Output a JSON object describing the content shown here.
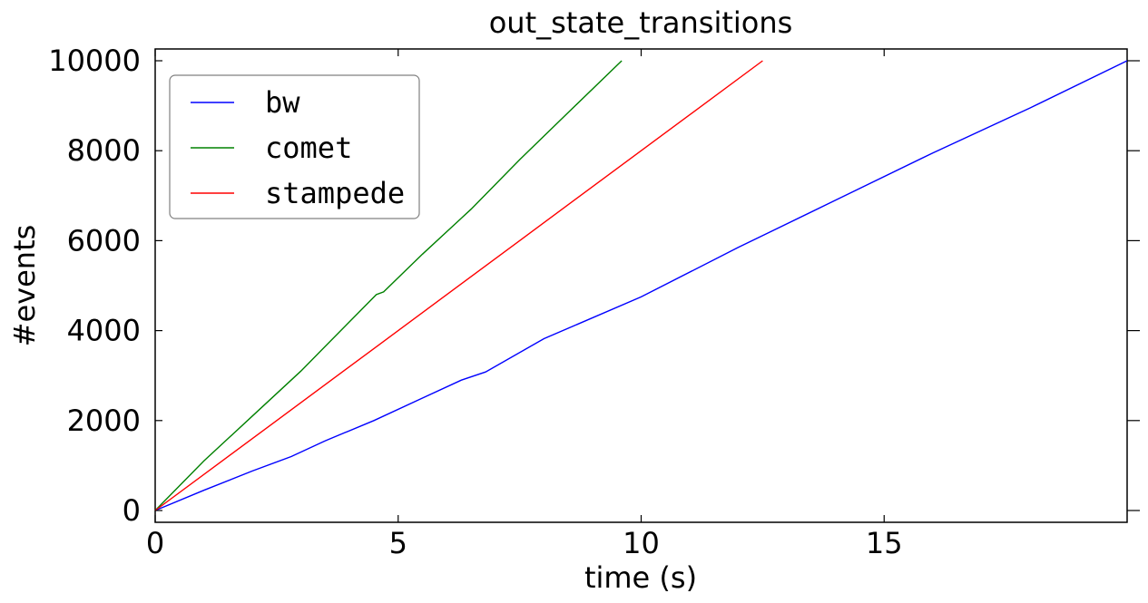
{
  "chart_data": {
    "type": "line",
    "title": "out_state_transitions",
    "xlabel": "time (s)",
    "ylabel": "#events",
    "xlim": [
      0,
      20
    ],
    "ylim": [
      0,
      10000
    ],
    "xticks": [
      0,
      5,
      10,
      15
    ],
    "yticks": [
      0,
      2000,
      4000,
      6000,
      8000,
      10000
    ],
    "grid": false,
    "legend_position": "upper-left",
    "series": [
      {
        "name": "bw",
        "color": "#0000ff",
        "x": [
          0,
          1,
          2,
          2.8,
          3.5,
          4.5,
          5.5,
          6.3,
          6.8,
          8,
          10,
          12,
          14,
          16,
          18,
          20
        ],
        "y": [
          0,
          450,
          880,
          1200,
          1550,
          2000,
          2500,
          2900,
          3080,
          3820,
          4750,
          5850,
          6900,
          7950,
          8950,
          10000
        ]
      },
      {
        "name": "comet",
        "color": "#008000",
        "x": [
          0,
          1,
          2,
          3,
          4,
          4.55,
          4.7,
          5.5,
          6.5,
          7.5,
          8.5,
          9.6
        ],
        "y": [
          0,
          1100,
          2100,
          3100,
          4200,
          4800,
          4860,
          5700,
          6700,
          7800,
          8850,
          10000
        ]
      },
      {
        "name": "stampede",
        "color": "#ff0000",
        "x": [
          0,
          2.5,
          5,
          7.5,
          10,
          12.5
        ],
        "y": [
          0,
          2000,
          4000,
          6000,
          8000,
          10000
        ]
      }
    ]
  }
}
